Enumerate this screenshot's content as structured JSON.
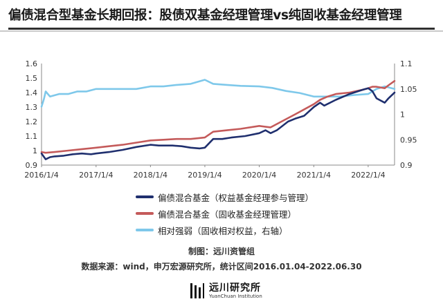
{
  "page": {
    "title": "偏债混合型基金长期回报：股债双基金经理管理vs纯固收基金经理管理"
  },
  "chart_data": {
    "type": "line",
    "x_ticks": [
      "2016/1/4",
      "2017/1/4",
      "2018/1/4",
      "2019/1/4",
      "2020/1/4",
      "2021/1/4",
      "2022/1/4"
    ],
    "x_range": [
      "2016/1/4",
      "2022/6/30"
    ],
    "y_left": {
      "ticks": [
        "0.9",
        "1",
        "1.1",
        "1.2",
        "1.3",
        "1.4",
        "1.5",
        "1.6"
      ],
      "lim": [
        0.9,
        1.6
      ]
    },
    "y_right": {
      "ticks": [
        "0.9",
        "0.95",
        "1",
        "1.05",
        "1.1"
      ],
      "lim": [
        0.9,
        1.1
      ]
    },
    "grid": false,
    "legend": "bottom",
    "series": [
      {
        "name": "偏债混合基金（权益基金经理参与管理）",
        "axis": "left",
        "color": "#1f2f6e",
        "points": [
          [
            "2016/1/4",
            0.98
          ],
          [
            "2016/2/1",
            0.94
          ],
          [
            "2016/3/1",
            0.955
          ],
          [
            "2016/4/1",
            0.96
          ],
          [
            "2016/6/1",
            0.965
          ],
          [
            "2016/8/1",
            0.975
          ],
          [
            "2016/10/1",
            0.98
          ],
          [
            "2016/12/1",
            0.975
          ],
          [
            "2017/1/4",
            0.98
          ],
          [
            "2017/4/1",
            0.99
          ],
          [
            "2017/7/1",
            1.005
          ],
          [
            "2017/10/1",
            1.025
          ],
          [
            "2018/1/4",
            1.04
          ],
          [
            "2018/3/1",
            1.035
          ],
          [
            "2018/6/1",
            1.035
          ],
          [
            "2018/8/1",
            1.03
          ],
          [
            "2018/10/1",
            1.02
          ],
          [
            "2018/12/1",
            1.015
          ],
          [
            "2019/1/4",
            1.02
          ],
          [
            "2019/3/1",
            1.08
          ],
          [
            "2019/5/1",
            1.08
          ],
          [
            "2019/7/1",
            1.09
          ],
          [
            "2019/10/1",
            1.1
          ],
          [
            "2020/1/4",
            1.12
          ],
          [
            "2020/2/15",
            1.14
          ],
          [
            "2020/3/20",
            1.12
          ],
          [
            "2020/5/1",
            1.14
          ],
          [
            "2020/7/15",
            1.2
          ],
          [
            "2020/9/1",
            1.22
          ],
          [
            "2020/11/1",
            1.24
          ],
          [
            "2021/1/4",
            1.3
          ],
          [
            "2021/2/15",
            1.33
          ],
          [
            "2021/3/15",
            1.31
          ],
          [
            "2021/6/1",
            1.35
          ],
          [
            "2021/9/1",
            1.39
          ],
          [
            "2021/12/1",
            1.42
          ],
          [
            "2022/1/4",
            1.43
          ],
          [
            "2022/2/1",
            1.41
          ],
          [
            "2022/3/1",
            1.36
          ],
          [
            "2022/4/25",
            1.33
          ],
          [
            "2022/5/20",
            1.36
          ],
          [
            "2022/6/30",
            1.4
          ]
        ]
      },
      {
        "name": "偏债混合基金（固收基金经理管理）",
        "axis": "left",
        "color": "#c45a5a",
        "points": [
          [
            "2016/1/4",
            0.99
          ],
          [
            "2016/2/1",
            0.985
          ],
          [
            "2016/4/1",
            0.99
          ],
          [
            "2016/7/1",
            1.0
          ],
          [
            "2016/10/1",
            1.01
          ],
          [
            "2017/1/4",
            1.02
          ],
          [
            "2017/4/1",
            1.03
          ],
          [
            "2017/7/1",
            1.04
          ],
          [
            "2017/10/1",
            1.055
          ],
          [
            "2018/1/4",
            1.07
          ],
          [
            "2018/4/1",
            1.075
          ],
          [
            "2018/7/1",
            1.08
          ],
          [
            "2018/10/1",
            1.08
          ],
          [
            "2019/1/4",
            1.09
          ],
          [
            "2019/3/1",
            1.13
          ],
          [
            "2019/6/1",
            1.14
          ],
          [
            "2019/9/1",
            1.15
          ],
          [
            "2020/1/4",
            1.17
          ],
          [
            "2020/3/20",
            1.16
          ],
          [
            "2020/6/1",
            1.2
          ],
          [
            "2020/9/1",
            1.25
          ],
          [
            "2021/1/4",
            1.32
          ],
          [
            "2021/2/15",
            1.35
          ],
          [
            "2021/4/1",
            1.37
          ],
          [
            "2021/6/1",
            1.39
          ],
          [
            "2021/9/1",
            1.4
          ],
          [
            "2021/12/1",
            1.42
          ],
          [
            "2022/1/4",
            1.43
          ],
          [
            "2022/2/1",
            1.44
          ],
          [
            "2022/3/1",
            1.44
          ],
          [
            "2022/4/25",
            1.43
          ],
          [
            "2022/5/20",
            1.45
          ],
          [
            "2022/6/30",
            1.48
          ]
        ]
      },
      {
        "name": "相对强弱（固收相对权益，右轴）",
        "axis": "right",
        "color": "#7ec8ea",
        "points": [
          [
            "2016/1/4",
            1.015
          ],
          [
            "2016/1/20",
            1.03
          ],
          [
            "2016/2/1",
            1.045
          ],
          [
            "2016/3/1",
            1.035
          ],
          [
            "2016/5/1",
            1.04
          ],
          [
            "2016/7/1",
            1.04
          ],
          [
            "2016/9/1",
            1.045
          ],
          [
            "2016/11/1",
            1.045
          ],
          [
            "2017/1/4",
            1.05
          ],
          [
            "2017/4/1",
            1.05
          ],
          [
            "2017/7/1",
            1.05
          ],
          [
            "2017/10/1",
            1.05
          ],
          [
            "2018/1/4",
            1.055
          ],
          [
            "2018/4/1",
            1.055
          ],
          [
            "2018/7/1",
            1.058
          ],
          [
            "2018/10/1",
            1.06
          ],
          [
            "2019/1/4",
            1.068
          ],
          [
            "2019/3/1",
            1.06
          ],
          [
            "2019/6/1",
            1.058
          ],
          [
            "2019/9/1",
            1.056
          ],
          [
            "2020/1/4",
            1.055
          ],
          [
            "2020/4/1",
            1.052
          ],
          [
            "2020/7/1",
            1.046
          ],
          [
            "2020/10/1",
            1.042
          ],
          [
            "2021/1/4",
            1.035
          ],
          [
            "2021/4/1",
            1.035
          ],
          [
            "2021/7/1",
            1.035
          ],
          [
            "2021/10/1",
            1.038
          ],
          [
            "2022/1/4",
            1.04
          ],
          [
            "2022/3/1",
            1.05
          ],
          [
            "2022/4/25",
            1.055
          ],
          [
            "2022/6/30",
            1.05
          ]
        ]
      }
    ]
  },
  "legend": [
    {
      "label": "偏债混合基金（权益基金经理参与管理）",
      "color": "#1f2f6e"
    },
    {
      "label": "偏债混合基金（固收基金经理管理）",
      "color": "#c45a5a"
    },
    {
      "label": "相对强弱（固收相对权益，右轴）",
      "color": "#7ec8ea"
    }
  ],
  "footnotes": {
    "producer": "制图：远川资管组",
    "source": "数据来源：wind，申万宏源研究所，统计区间2016.01.04-2022.06.30"
  },
  "logo": {
    "name_cn": "远川研究所",
    "name_en": "YuanChuan Institution"
  }
}
